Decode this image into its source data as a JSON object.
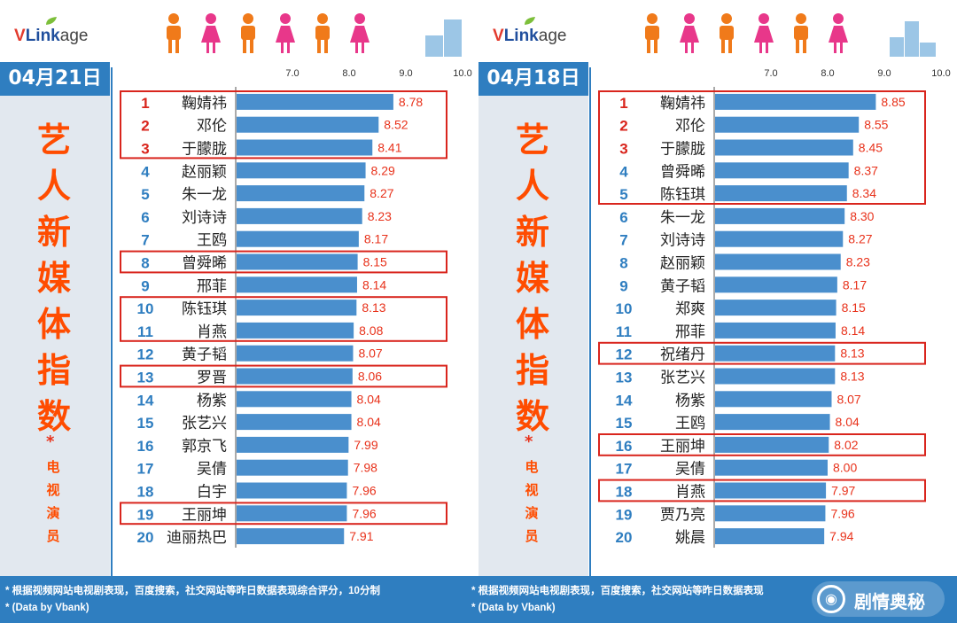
{
  "brand": {
    "v": "V",
    "link": "Link",
    "age": "age"
  },
  "subtitle_chars": [
    "电",
    "视",
    "演",
    "员"
  ],
  "title_chars": [
    "艺",
    "人",
    "新",
    "媒",
    "体",
    "指",
    "数"
  ],
  "star": "*",
  "colors": {
    "bar": "#4a8fcd",
    "rank": "#2f7ec0",
    "top_rank": "#d9251d",
    "value": "#e8321b",
    "highlight": "#d9251d",
    "title": "#ff4c00",
    "header": "#2f7ec0"
  },
  "footer": {
    "note_left": "* 根据视频网站电视剧表现，百度搜索，社交网站等昨日数据表现综合评分，10分制",
    "note_right": "* 根据视频网站电视剧表现，百度搜索，社交网站等昨日数据表现",
    "data_left": "* (Data by Vbank)",
    "data_right": "* (Data by Vbank)",
    "watermark": "剧情奥秘"
  },
  "chart_data": [
    {
      "type": "bar",
      "orientation": "horizontal",
      "date": "04月21日",
      "title": "艺人新媒体指数",
      "subtitle": "电视演员",
      "xlim": [
        6.0,
        10.0
      ],
      "x_ticks": [
        "7.0",
        "8.0",
        "9.0",
        "10.0"
      ],
      "x_tick_values": [
        7.0,
        8.0,
        9.0,
        10.0
      ],
      "ranks": [
        1,
        2,
        3,
        4,
        5,
        6,
        7,
        8,
        9,
        10,
        11,
        12,
        13,
        14,
        15,
        16,
        17,
        18,
        19,
        20
      ],
      "categories": [
        "鞠婧祎",
        "邓伦",
        "于朦胧",
        "赵丽颖",
        "朱一龙",
        "刘诗诗",
        "王鸥",
        "曾舜晞",
        "邢菲",
        "陈钰琪",
        "肖燕",
        "黄子韬",
        "罗晋",
        "杨紫",
        "张艺兴",
        "郭京飞",
        "吴倩",
        "白宇",
        "王丽坤",
        "迪丽热巴"
      ],
      "values": [
        8.78,
        8.52,
        8.41,
        8.29,
        8.27,
        8.23,
        8.17,
        8.15,
        8.14,
        8.13,
        8.08,
        8.07,
        8.06,
        8.04,
        8.04,
        7.99,
        7.98,
        7.96,
        7.96,
        7.91
      ],
      "value_labels": [
        "8.78",
        "8.52",
        "8.41",
        "8.29",
        "8.27",
        "8.23",
        "8.17",
        "8.15",
        "8.14",
        "8.13",
        "8.08",
        "8.07",
        "8.06",
        "8.04",
        "8.04",
        "7.99",
        "7.98",
        "7.96",
        "7.96",
        "7.91"
      ],
      "highlight_groups": [
        [
          1,
          3
        ],
        [
          8,
          8
        ],
        [
          10,
          11
        ],
        [
          13,
          13
        ],
        [
          19,
          19
        ]
      ]
    },
    {
      "type": "bar",
      "orientation": "horizontal",
      "date": "04月18日",
      "title": "艺人新媒体指数",
      "subtitle": "电视演员",
      "xlim": [
        6.0,
        10.0
      ],
      "x_ticks": [
        "7.0",
        "8.0",
        "9.0",
        "10.0"
      ],
      "x_tick_values": [
        7.0,
        8.0,
        9.0,
        10.0
      ],
      "ranks": [
        1,
        2,
        3,
        4,
        5,
        6,
        7,
        8,
        9,
        10,
        11,
        12,
        13,
        14,
        15,
        16,
        17,
        18,
        19,
        20
      ],
      "categories": [
        "鞠婧祎",
        "邓伦",
        "于朦胧",
        "曾舜晞",
        "陈钰琪",
        "朱一龙",
        "刘诗诗",
        "赵丽颖",
        "黄子韬",
        "郑爽",
        "邢菲",
        "祝绪丹",
        "张艺兴",
        "杨紫",
        "王鸥",
        "王丽坤",
        "吴倩",
        "肖燕",
        "贾乃亮",
        "姚晨"
      ],
      "values": [
        8.85,
        8.55,
        8.45,
        8.37,
        8.34,
        8.3,
        8.27,
        8.23,
        8.17,
        8.15,
        8.14,
        8.13,
        8.13,
        8.07,
        8.04,
        8.02,
        8.0,
        7.97,
        7.96,
        7.94
      ],
      "value_labels": [
        "8.85",
        "8.55",
        "8.45",
        "8.37",
        "8.34",
        "8.30",
        "8.27",
        "8.23",
        "8.17",
        "8.15",
        "8.14",
        "8.13",
        "8.13",
        "8.07",
        "8.04",
        "8.02",
        "8.00",
        "7.97",
        "7.96",
        "7.94"
      ],
      "highlight_groups": [
        [
          1,
          5
        ],
        [
          12,
          12
        ],
        [
          16,
          16
        ],
        [
          18,
          18
        ]
      ]
    }
  ]
}
